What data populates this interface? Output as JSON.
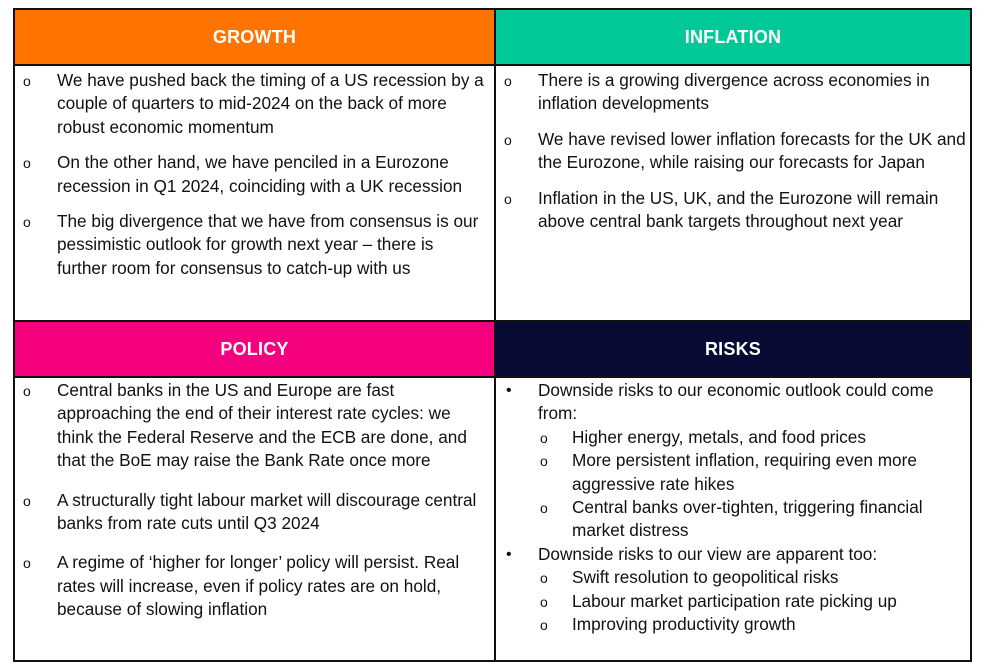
{
  "colors": {
    "growth": "#ff7300",
    "inflation": "#00c997",
    "policy": "#f5007f",
    "risks": "#070b33",
    "border": "#111111"
  },
  "growth": {
    "title": "GROWTH",
    "items": [
      "We have pushed back the timing of a US recession by a couple of quarters to mid-2024 on the back of more robust economic momentum",
      "On the other hand, we have penciled in a Eurozone recession in Q1 2024, coinciding with a UK recession",
      "The big divergence that we have from consensus is our pessimistic outlook for growth next year – there is further room for consensus to catch-up with us"
    ]
  },
  "inflation": {
    "title": "INFLATION",
    "items": [
      "There is a growing divergence across economies in inflation developments",
      "We have revised lower inflation forecasts for the UK and the Eurozone, while raising our forecasts for Japan",
      "Inflation in the US, UK, and the Eurozone will remain above central bank targets throughout next year"
    ]
  },
  "policy": {
    "title": "POLICY",
    "items": [
      "Central banks in the US and Europe are fast approaching the end of their interest rate cycles: we think the Federal Reserve and the ECB are done, and that the BoE may raise the Bank Rate once more",
      "A structurally tight labour market will discourage central banks from rate cuts until Q3 2024",
      "A regime of ‘higher for longer’ policy will persist. Real rates will increase, even if policy rates are on hold, because of slowing inflation"
    ]
  },
  "risks": {
    "title": "RISKS",
    "items": [
      {
        "text": "Downside risks to our economic outlook could come from:",
        "sub": [
          "Higher energy, metals, and food prices",
          "More persistent inflation, requiring even more aggressive rate hikes",
          "Central banks over-tighten, triggering financial market distress"
        ]
      },
      {
        "text": "Downside risks to our view are apparent too:",
        "sub": [
          "Swift resolution to geopolitical risks",
          "Labour market participation rate picking up",
          "Improving productivity growth"
        ]
      }
    ]
  },
  "markers": {
    "circle": "o",
    "bullet": "•"
  }
}
